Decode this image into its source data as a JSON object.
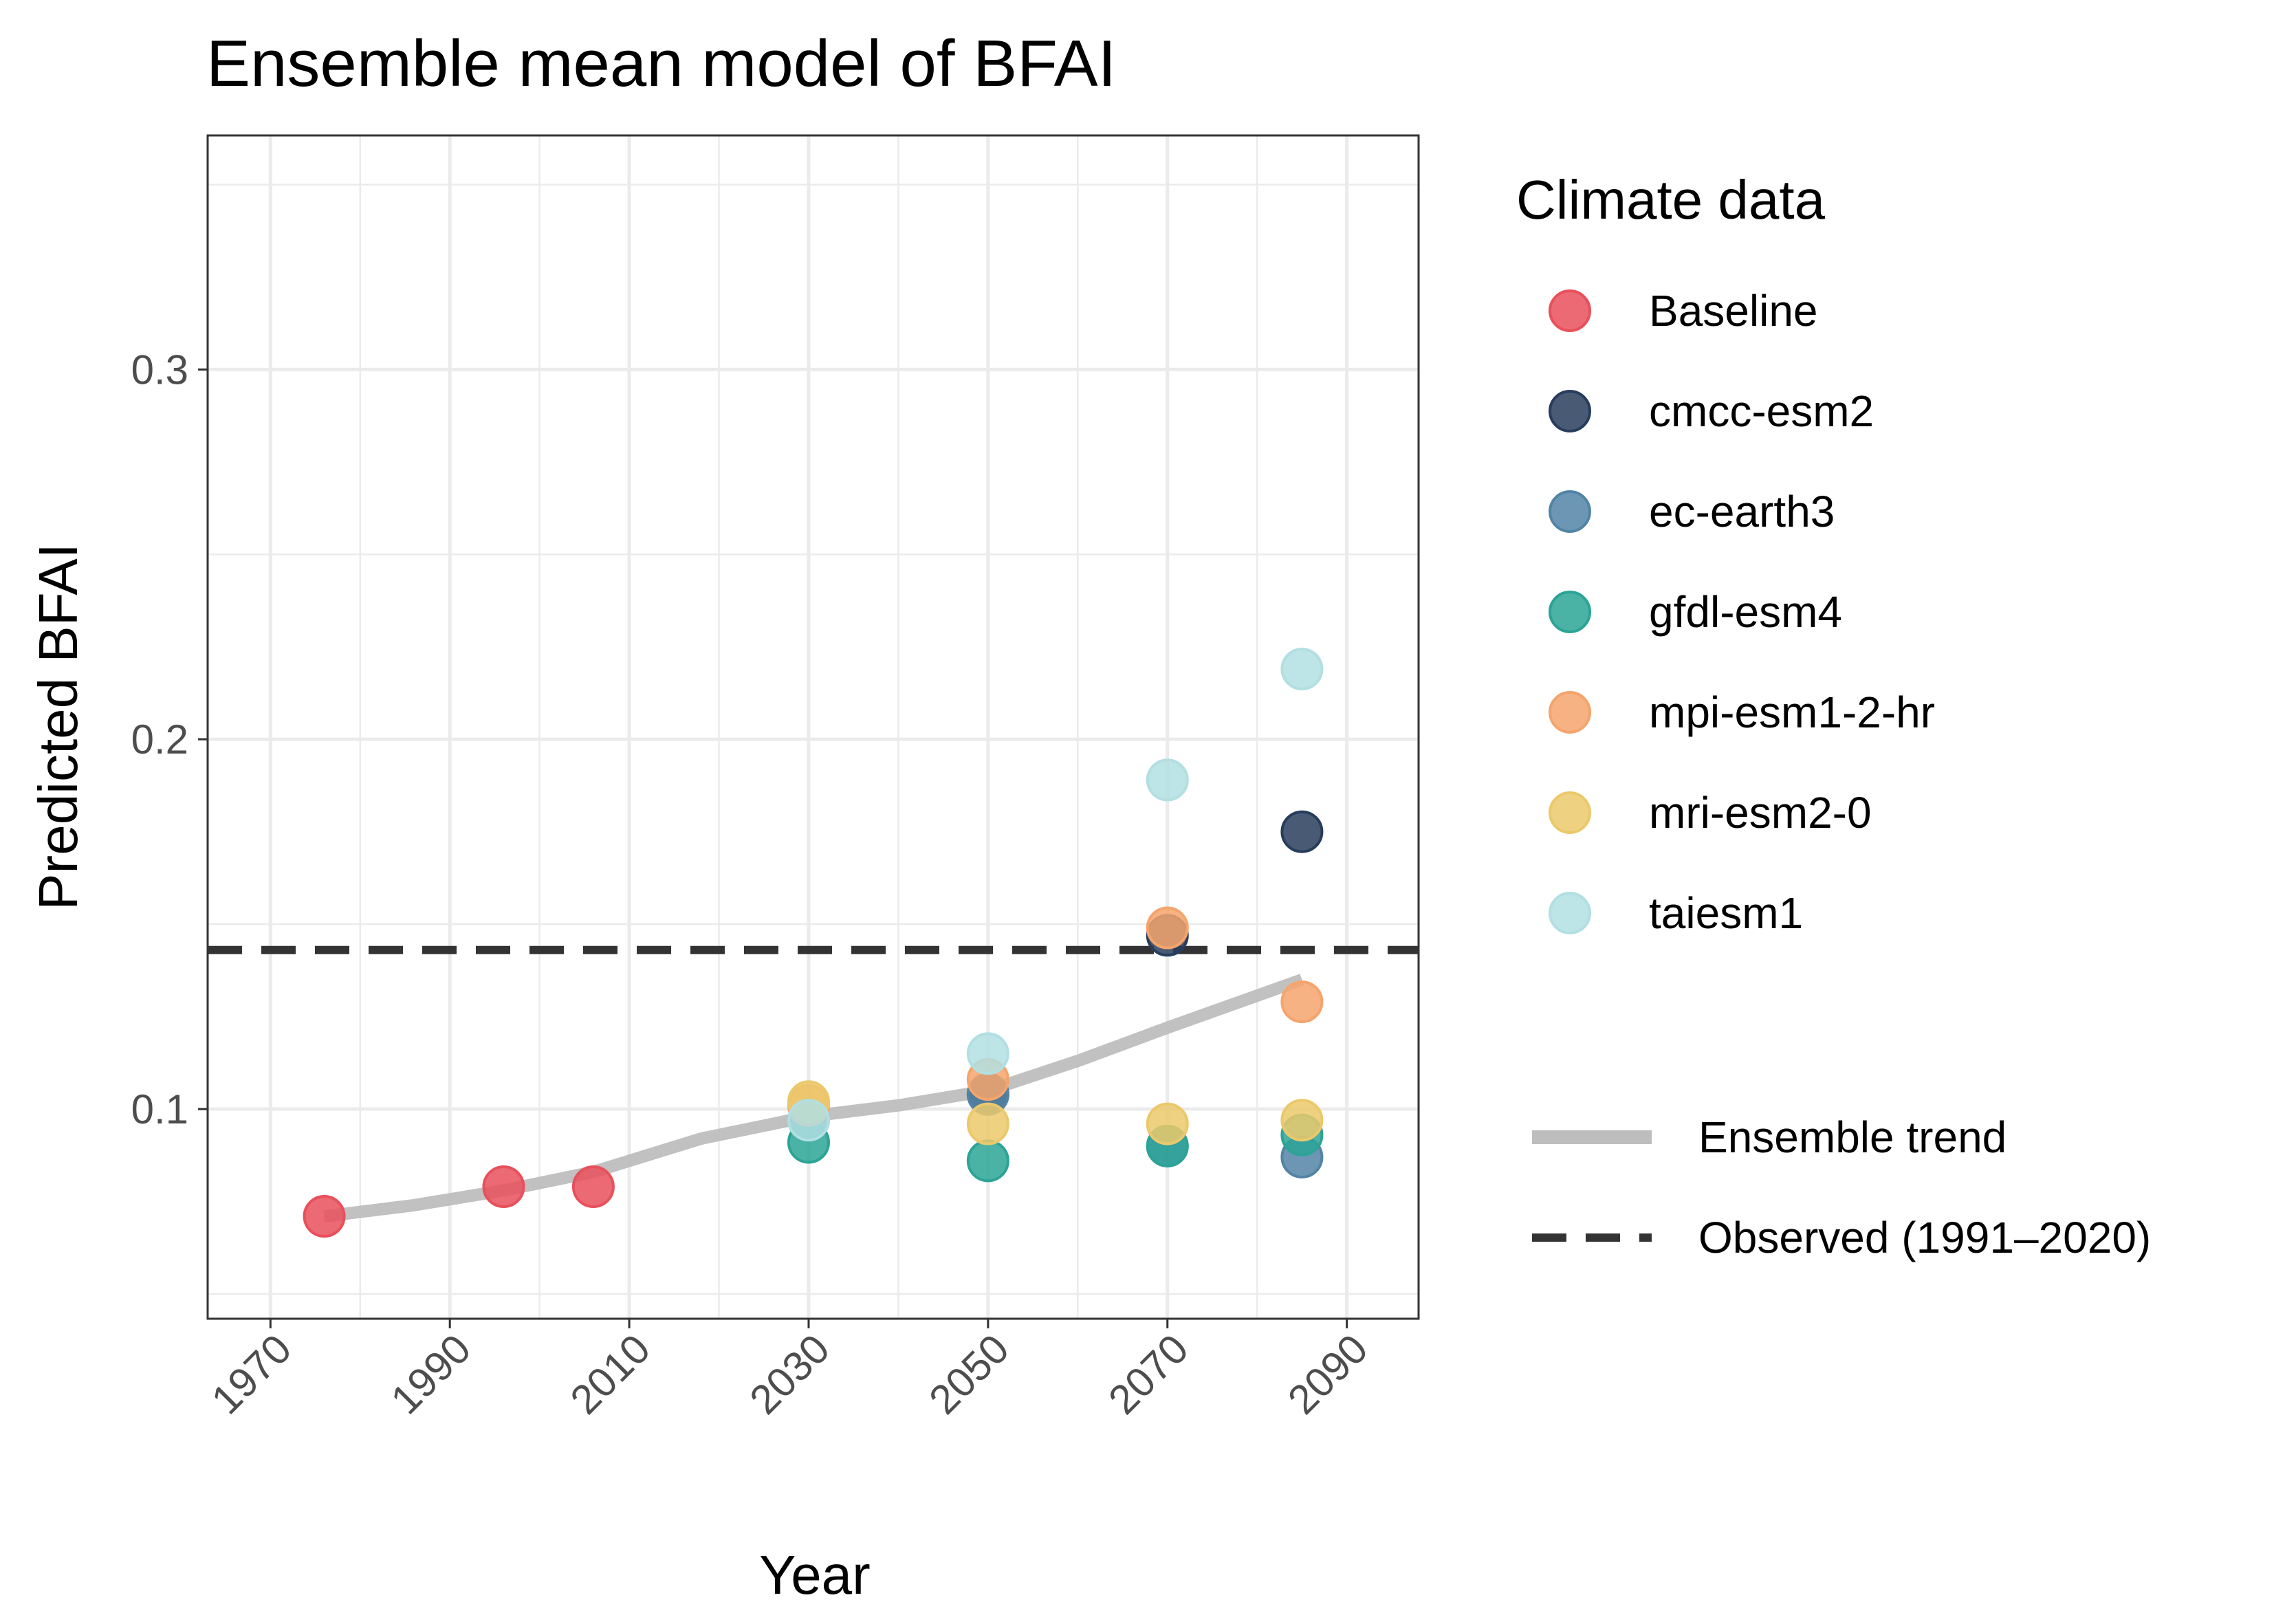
{
  "chart_data": {
    "type": "scatter",
    "title": "Ensemble mean model of BFAI",
    "xlabel": "Year",
    "ylabel": "Predicted BFAI",
    "xlim": [
      1963,
      2098
    ],
    "ylim": [
      0.0433,
      0.3633
    ],
    "x_ticks": [
      1970,
      1990,
      2010,
      2030,
      2050,
      2070,
      2090
    ],
    "x_tick_labels": [
      "1970",
      "1990",
      "2010",
      "2030",
      "2050",
      "2070",
      "2090"
    ],
    "y_ticks": [
      0.1,
      0.2,
      0.3
    ],
    "y_tick_labels": [
      "0.1",
      "0.2",
      "0.3"
    ],
    "grid": true,
    "legend": {
      "placement": "right",
      "title": "Climate data",
      "trend_label": "Ensemble trend",
      "observed_label": "Observed (1991–2020)"
    },
    "series": [
      {
        "name": "Baseline",
        "color": "#e8505b",
        "x": [
          1976,
          1996,
          2006
        ],
        "y": [
          0.071,
          0.079,
          0.079
        ]
      },
      {
        "name": "cmcc-esm2",
        "color": "#283d5c",
        "x": [
          2050,
          2070,
          2085
        ],
        "y": [
          0.104,
          0.147,
          0.175
        ]
      },
      {
        "name": "ec-earth3",
        "color": "#5284a6",
        "x": [
          2030,
          2050,
          2070,
          2085
        ],
        "y": [
          0.097,
          0.104,
          0.09,
          0.087
        ]
      },
      {
        "name": "gfdl-esm4",
        "color": "#2ba496",
        "x": [
          2030,
          2050,
          2070,
          2085
        ],
        "y": [
          0.091,
          0.086,
          0.09,
          0.093
        ]
      },
      {
        "name": "mpi-esm1-2-hr",
        "color": "#f5a46c",
        "x": [
          2030,
          2050,
          2070,
          2085
        ],
        "y": [
          0.101,
          0.108,
          0.149,
          0.129
        ]
      },
      {
        "name": "mri-esm2-0",
        "color": "#ebc96b",
        "x": [
          2030,
          2050,
          2070,
          2085
        ],
        "y": [
          0.102,
          0.096,
          0.096,
          0.097
        ]
      },
      {
        "name": "taiesm1",
        "color": "#b2dfe2",
        "x": [
          2030,
          2050,
          2070,
          2085
        ],
        "y": [
          0.097,
          0.115,
          0.189,
          0.219
        ]
      }
    ],
    "ensemble_trend": {
      "color": "#bebebe",
      "x": [
        1976,
        1986,
        1996,
        2006,
        2018,
        2030,
        2040,
        2050,
        2060,
        2070,
        2085
      ],
      "y": [
        0.071,
        0.074,
        0.078,
        0.083,
        0.092,
        0.098,
        0.101,
        0.105,
        0.113,
        0.122,
        0.135
      ]
    },
    "observed": {
      "value": 0.143,
      "color": "#333333"
    }
  }
}
